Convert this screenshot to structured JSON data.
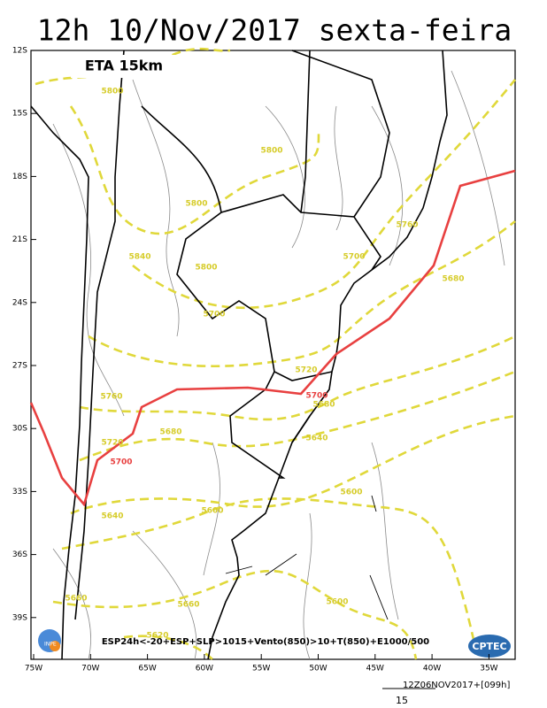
{
  "title": "12h 10/Nov/2017 sexta-feira",
  "model": "ETA 15km",
  "lat_labels": [
    "12S",
    "15S",
    "18S",
    "21S",
    "24S",
    "27S",
    "30S",
    "33S",
    "36S",
    "39S"
  ],
  "lon_labels": [
    "75W",
    "70W",
    "65W",
    "60W",
    "55W",
    "50W",
    "45W",
    "40W",
    "35W"
  ],
  "contour_labels": [
    "5800",
    "5800",
    "5800",
    "5840",
    "5800",
    "5700",
    "5760",
    "5700",
    "5680",
    "5720",
    "5700",
    "5680",
    "5760",
    "5680",
    "5720",
    "5700",
    "5640",
    "5600",
    "5640",
    "5600",
    "5660",
    "5660",
    "5600",
    "5620"
  ],
  "fields": "ESP24h<-20+ESP+SLP>1015+Vento(850)>10+T(850)+E1000/500",
  "run": "12Z06NOV2017+[099h]",
  "vector_scale": 15,
  "logos": [
    "INPE",
    "CPTEC"
  ]
}
